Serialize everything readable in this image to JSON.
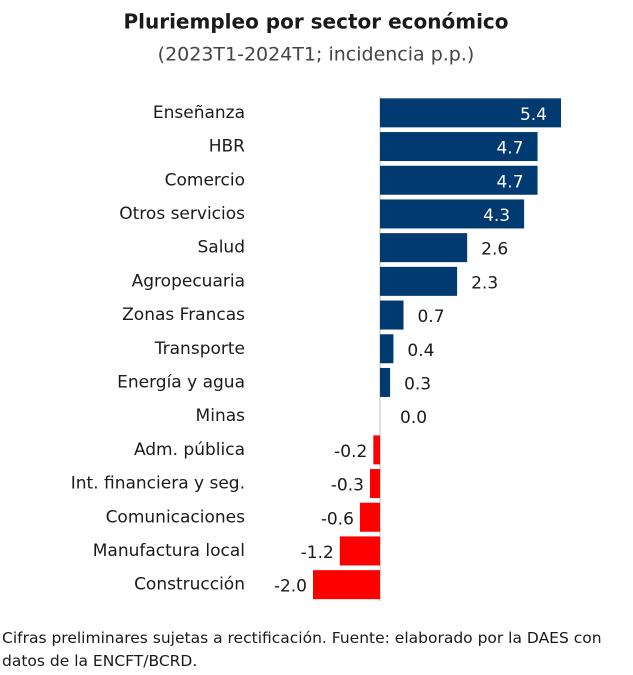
{
  "chart_data": {
    "type": "hbar",
    "title": "Pluriempleo por sector económico",
    "subtitle": "(2023T1-2024T1; incidencia p.p.)",
    "categories": [
      "Enseñanza",
      "HBR",
      "Comercio",
      "Otros servicios",
      "Salud",
      "Agropecuaria",
      "Zonas Francas",
      "Transporte",
      "Energía y agua",
      "Minas",
      "Adm. pública",
      "Int. financiera y seg.",
      "Comunicaciones",
      "Manufactura local",
      "Construcción"
    ],
    "values": [
      5.4,
      4.7,
      4.7,
      4.3,
      2.6,
      2.3,
      0.7,
      0.4,
      0.3,
      0.0,
      -0.2,
      -0.3,
      -0.6,
      -1.2,
      -2.0
    ],
    "value_labels": [
      "5.4",
      "4.7",
      "4.7",
      "4.3",
      "2.6",
      "2.3",
      "0.7",
      "0.4",
      "0.3",
      "0.0",
      "-0.2",
      "-0.3",
      "-0.6",
      "-1.2",
      "-2.0"
    ],
    "positive_color": "#003a70",
    "negative_color": "#ff0000",
    "note": "Cifras preliminares sujetas a rectificación. Fuente: elaborado por la DAES con datos de la ENCFT/BCRD."
  }
}
